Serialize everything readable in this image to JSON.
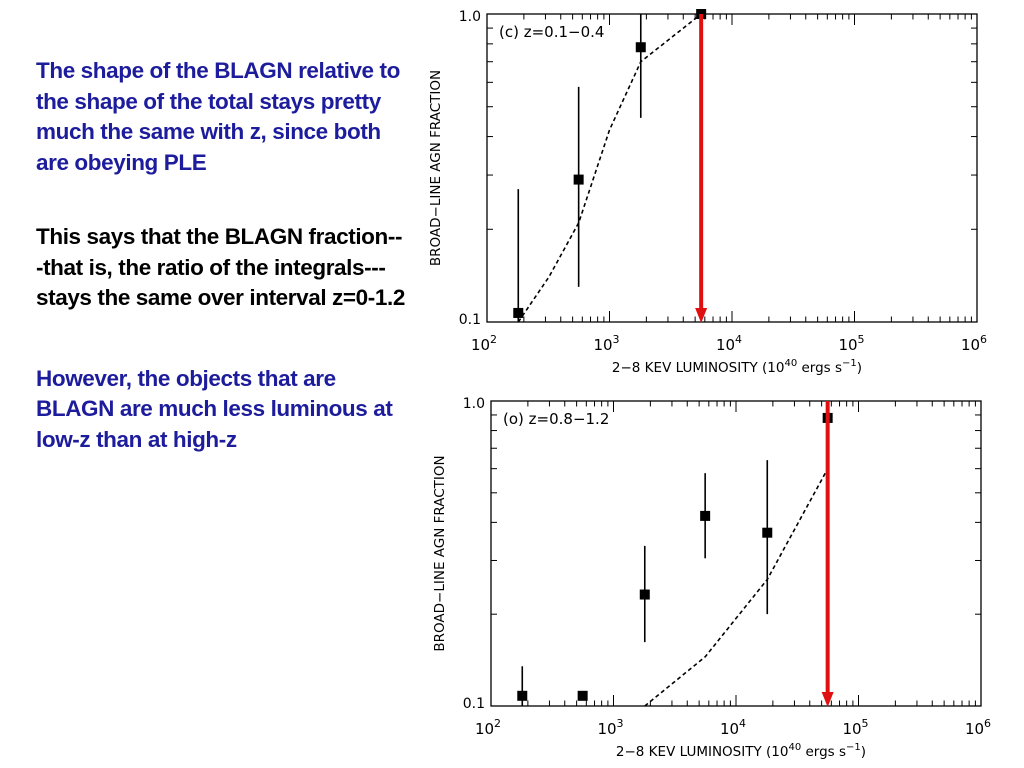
{
  "paragraphs": [
    {
      "text": "The shape of the BLAGN relative to the shape of the total stays pretty much the same with z, since both are obeying PLE",
      "color": "#1c1c9c"
    },
    {
      "text": "This says that the BLAGN fraction---that is, the ratio of the integrals---stays the same over interval z=0-1.2",
      "color": "#000000"
    },
    {
      "text": "However, the objects that are BLAGN are much less luminous at low-z than at high-z",
      "color": "#1c1c9c"
    }
  ],
  "chart_data": [
    {
      "type": "scatter",
      "title": "(c) z=0.1−0.4",
      "xlabel": "2−8 KEV LUMINOSITY (10",
      "xlabel_sup": "40",
      "xlabel_tail": " ergs s",
      "xlabel_sup2": "−1",
      "xlabel_end": ")",
      "ylabel": "BROAD−LINE AGN FRACTION",
      "xscale": "log",
      "yscale": "log",
      "xlim": [
        100,
        1000000
      ],
      "ylim": [
        0.1,
        1.0
      ],
      "xticks": [
        {
          "value": 100,
          "base": "10",
          "exp": "2"
        },
        {
          "value": 1000,
          "base": "10",
          "exp": "3"
        },
        {
          "value": 10000,
          "base": "10",
          "exp": "4"
        },
        {
          "value": 100000,
          "base": "10",
          "exp": "5"
        },
        {
          "value": 1000000,
          "base": "10",
          "exp": "6"
        }
      ],
      "yticks": [
        {
          "value": 0.1,
          "label": "0.1"
        },
        {
          "value": 1.0,
          "label": "1.0"
        }
      ],
      "points": [
        {
          "x": 180,
          "y": 0.107,
          "ylo": 0.1,
          "yhi": 0.27
        },
        {
          "x": 560,
          "y": 0.29,
          "ylo": 0.13,
          "yhi": 0.58
        },
        {
          "x": 1800,
          "y": 0.78,
          "ylo": 0.46,
          "yhi": 1.0
        },
        {
          "x": 5600,
          "y": 1.0,
          "ylo": 1.0,
          "yhi": 1.0
        }
      ],
      "model_line": {
        "style": "dashed",
        "x": [
          180,
          320,
          560,
          1000,
          1800,
          5600
        ],
        "y": [
          0.1,
          0.14,
          0.21,
          0.42,
          0.7,
          1.0
        ]
      },
      "marker_line": {
        "x": 5600,
        "color": "#e01010",
        "arrow": "down"
      }
    },
    {
      "type": "scatter",
      "title": "(o) z=0.8−1.2",
      "xlabel": "2−8 KEV LUMINOSITY (10",
      "xlabel_sup": "40",
      "xlabel_tail": " ergs s",
      "xlabel_sup2": "−1",
      "xlabel_end": ")",
      "ylabel": "BROAD−LINE AGN FRACTION",
      "xscale": "log",
      "yscale": "log",
      "xlim": [
        100,
        1000000
      ],
      "ylim": [
        0.1,
        1.0
      ],
      "xticks": [
        {
          "value": 100,
          "base": "10",
          "exp": "2"
        },
        {
          "value": 1000,
          "base": "10",
          "exp": "3"
        },
        {
          "value": 10000,
          "base": "10",
          "exp": "4"
        },
        {
          "value": 100000,
          "base": "10",
          "exp": "5"
        },
        {
          "value": 1000000,
          "base": "10",
          "exp": "6"
        }
      ],
      "yticks": [
        {
          "value": 0.1,
          "label": "0.1"
        },
        {
          "value": 1.0,
          "label": "1.0"
        }
      ],
      "points": [
        {
          "x": 180,
          "y": 0.108,
          "ylo": 0.1,
          "yhi": 0.135
        },
        {
          "x": 560,
          "y": 0.108,
          "ylo": 0.108,
          "yhi": 0.108
        },
        {
          "x": 1800,
          "y": 0.232,
          "ylo": 0.162,
          "yhi": 0.335
        },
        {
          "x": 5600,
          "y": 0.42,
          "ylo": 0.305,
          "yhi": 0.58
        },
        {
          "x": 18000,
          "y": 0.37,
          "ylo": 0.2,
          "yhi": 0.64
        },
        {
          "x": 56000,
          "y": 0.88,
          "ylo": 0.48,
          "yhi": 1.0
        }
      ],
      "model_line": {
        "style": "dashed",
        "x": [
          1800,
          5600,
          18000,
          56000
        ],
        "y": [
          0.1,
          0.145,
          0.26,
          0.6
        ]
      },
      "marker_line": {
        "x": 56000,
        "color": "#e01010",
        "arrow": "down"
      }
    }
  ]
}
